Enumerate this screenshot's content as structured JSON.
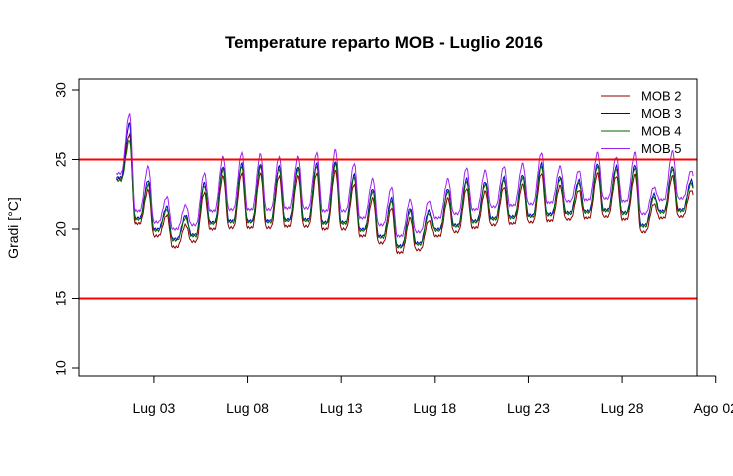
{
  "chart_data": {
    "type": "line",
    "title": "Temperature reparto MOB - Luglio 2016",
    "xlabel": "",
    "ylabel": "Gradi [°C]",
    "xlim": [
      "2016-06-29",
      "2016-08-01"
    ],
    "ylim": [
      10,
      30
    ],
    "yticks": [
      10,
      15,
      20,
      25,
      30
    ],
    "xticks": [
      {
        "date": "2016-07-03",
        "label": "Lug 03"
      },
      {
        "date": "2016-07-08",
        "label": "Lug 08"
      },
      {
        "date": "2016-07-13",
        "label": "Lug 13"
      },
      {
        "date": "2016-07-18",
        "label": "Lug 18"
      },
      {
        "date": "2016-07-23",
        "label": "Lug 23"
      },
      {
        "date": "2016-07-28",
        "label": "Lug 28"
      },
      {
        "date": "2016-08-02",
        "label": "Ago 02"
      }
    ],
    "hlines": [
      {
        "y": 25,
        "color": "#ff0000"
      },
      {
        "y": 15,
        "color": "#ff0000"
      }
    ],
    "legend_position": "top-right",
    "x_start": "2016-07-01",
    "x_end": "2016-07-31",
    "daily_min": [
      {
        "date": "2016-07-01",
        "values": [
          23.6,
          23.7,
          23.5,
          24.0
        ]
      },
      {
        "date": "2016-07-02",
        "values": [
          20.4,
          20.8,
          20.7,
          21.3
        ]
      },
      {
        "date": "2016-07-03",
        "values": [
          19.5,
          20.0,
          19.9,
          20.5
        ]
      },
      {
        "date": "2016-07-04",
        "values": [
          18.7,
          19.3,
          19.2,
          20.0
        ]
      },
      {
        "date": "2016-07-05",
        "values": [
          19.1,
          19.6,
          19.5,
          20.3
        ]
      },
      {
        "date": "2016-07-06",
        "values": [
          20.0,
          20.5,
          20.4,
          21.3
        ]
      },
      {
        "date": "2016-07-07",
        "values": [
          20.1,
          20.6,
          20.5,
          21.4
        ]
      },
      {
        "date": "2016-07-08",
        "values": [
          20.1,
          20.6,
          20.5,
          21.4
        ]
      },
      {
        "date": "2016-07-09",
        "values": [
          20.1,
          20.6,
          20.5,
          21.4
        ]
      },
      {
        "date": "2016-07-10",
        "values": [
          20.2,
          20.7,
          20.6,
          21.5
        ]
      },
      {
        "date": "2016-07-11",
        "values": [
          20.2,
          20.7,
          20.6,
          21.5
        ]
      },
      {
        "date": "2016-07-12",
        "values": [
          20.0,
          20.5,
          20.4,
          21.3
        ]
      },
      {
        "date": "2016-07-13",
        "values": [
          20.0,
          20.5,
          20.4,
          21.3
        ]
      },
      {
        "date": "2016-07-14",
        "values": [
          19.5,
          20.0,
          19.9,
          20.8
        ]
      },
      {
        "date": "2016-07-15",
        "values": [
          19.0,
          19.5,
          19.4,
          20.3
        ]
      },
      {
        "date": "2016-07-16",
        "values": [
          18.3,
          18.8,
          18.7,
          19.5
        ]
      },
      {
        "date": "2016-07-17",
        "values": [
          18.5,
          19.0,
          18.9,
          19.8
        ]
      },
      {
        "date": "2016-07-18",
        "values": [
          19.5,
          20.0,
          19.9,
          20.8
        ]
      },
      {
        "date": "2016-07-19",
        "values": [
          19.8,
          20.3,
          20.2,
          21.1
        ]
      },
      {
        "date": "2016-07-20",
        "values": [
          20.1,
          20.6,
          20.5,
          21.4
        ]
      },
      {
        "date": "2016-07-21",
        "values": [
          20.3,
          20.8,
          20.7,
          21.6
        ]
      },
      {
        "date": "2016-07-22",
        "values": [
          20.4,
          20.9,
          20.8,
          21.7
        ]
      },
      {
        "date": "2016-07-23",
        "values": [
          20.5,
          21.0,
          20.9,
          21.8
        ]
      },
      {
        "date": "2016-07-24",
        "values": [
          20.6,
          21.1,
          21.0,
          21.9
        ]
      },
      {
        "date": "2016-07-25",
        "values": [
          20.7,
          21.2,
          21.1,
          22.0
        ]
      },
      {
        "date": "2016-07-26",
        "values": [
          20.8,
          21.3,
          21.2,
          22.1
        ]
      },
      {
        "date": "2016-07-27",
        "values": [
          20.9,
          21.4,
          21.3,
          22.2
        ]
      },
      {
        "date": "2016-07-28",
        "values": [
          20.7,
          21.2,
          21.1,
          22.0
        ]
      },
      {
        "date": "2016-07-29",
        "values": [
          19.8,
          20.3,
          20.2,
          21.1
        ]
      },
      {
        "date": "2016-07-30",
        "values": [
          20.8,
          21.3,
          21.2,
          22.1
        ]
      },
      {
        "date": "2016-07-31",
        "values": [
          20.9,
          21.4,
          21.3,
          22.2
        ]
      }
    ],
    "daily_max": [
      {
        "date": "2016-07-01",
        "values": [
          26.8,
          27.6,
          26.4,
          28.3
        ]
      },
      {
        "date": "2016-07-02",
        "values": [
          22.8,
          23.5,
          23.2,
          24.5
        ]
      },
      {
        "date": "2016-07-03",
        "values": [
          21.0,
          21.6,
          21.4,
          22.3
        ]
      },
      {
        "date": "2016-07-04",
        "values": [
          20.3,
          21.0,
          20.8,
          21.7
        ]
      },
      {
        "date": "2016-07-05",
        "values": [
          22.6,
          23.3,
          23.1,
          24.0
        ]
      },
      {
        "date": "2016-07-06",
        "values": [
          23.8,
          24.5,
          24.3,
          25.2
        ]
      },
      {
        "date": "2016-07-07",
        "values": [
          24.0,
          24.7,
          24.5,
          25.5
        ]
      },
      {
        "date": "2016-07-08",
        "values": [
          24.0,
          24.7,
          24.5,
          25.4
        ]
      },
      {
        "date": "2016-07-09",
        "values": [
          23.8,
          24.5,
          24.3,
          25.2
        ]
      },
      {
        "date": "2016-07-10",
        "values": [
          23.8,
          24.5,
          24.3,
          25.2
        ]
      },
      {
        "date": "2016-07-11",
        "values": [
          24.0,
          24.7,
          24.5,
          25.5
        ]
      },
      {
        "date": "2016-07-12",
        "values": [
          24.2,
          24.9,
          24.7,
          25.7
        ]
      },
      {
        "date": "2016-07-13",
        "values": [
          23.2,
          23.9,
          23.7,
          24.7
        ]
      },
      {
        "date": "2016-07-14",
        "values": [
          22.2,
          22.9,
          22.7,
          23.6
        ]
      },
      {
        "date": "2016-07-15",
        "values": [
          21.5,
          22.2,
          22.0,
          23.0
        ]
      },
      {
        "date": "2016-07-16",
        "values": [
          20.8,
          21.5,
          21.3,
          22.1
        ]
      },
      {
        "date": "2016-07-17",
        "values": [
          20.6,
          21.3,
          21.1,
          22.0
        ]
      },
      {
        "date": "2016-07-18",
        "values": [
          22.2,
          22.9,
          22.7,
          23.6
        ]
      },
      {
        "date": "2016-07-19",
        "values": [
          22.9,
          23.6,
          23.4,
          24.4
        ]
      },
      {
        "date": "2016-07-20",
        "values": [
          22.7,
          23.4,
          23.2,
          24.2
        ]
      },
      {
        "date": "2016-07-21",
        "values": [
          23.0,
          23.7,
          23.5,
          24.5
        ]
      },
      {
        "date": "2016-07-22",
        "values": [
          23.2,
          23.9,
          23.7,
          24.7
        ]
      },
      {
        "date": "2016-07-23",
        "values": [
          24.0,
          24.7,
          24.5,
          25.5
        ]
      },
      {
        "date": "2016-07-24",
        "values": [
          23.1,
          23.8,
          23.6,
          24.5
        ]
      },
      {
        "date": "2016-07-25",
        "values": [
          22.8,
          23.5,
          23.3,
          24.2
        ]
      },
      {
        "date": "2016-07-26",
        "values": [
          24.0,
          24.7,
          24.5,
          25.5
        ]
      },
      {
        "date": "2016-07-27",
        "values": [
          23.8,
          24.5,
          24.3,
          25.2
        ]
      },
      {
        "date": "2016-07-28",
        "values": [
          23.9,
          24.6,
          24.4,
          25.5
        ]
      },
      {
        "date": "2016-07-29",
        "values": [
          21.8,
          22.5,
          22.3,
          23.0
        ]
      },
      {
        "date": "2016-07-30",
        "values": [
          23.8,
          24.5,
          24.3,
          25.6
        ]
      },
      {
        "date": "2016-07-31",
        "values": [
          22.8,
          23.5,
          23.3,
          24.2
        ]
      }
    ],
    "series": [
      {
        "name": "MOB 2",
        "color": "#8b0000"
      },
      {
        "name": "MOB 3",
        "color": "#0000cd"
      },
      {
        "name": "MOB 4",
        "color": "#006400"
      },
      {
        "name": "MOB 5",
        "color": "#a020f0"
      }
    ]
  }
}
